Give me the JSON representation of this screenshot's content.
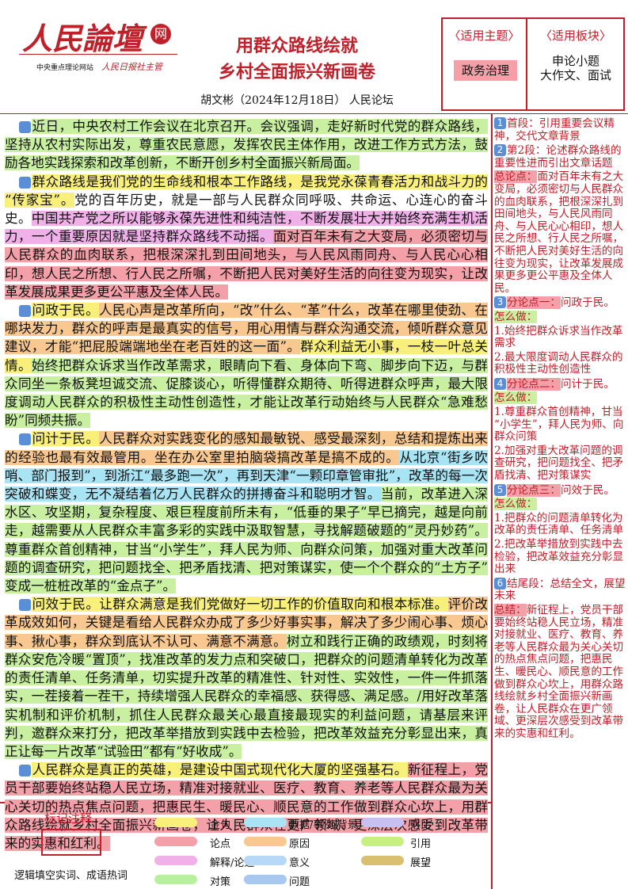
{
  "header": {
    "logo": "人民論壇",
    "logo_badge": "网",
    "logo_caption": "中央重点理论网站",
    "logo_org": "人民日报社主管",
    "title": [
      "用群众路线绘就",
      "乡村全面振兴新画卷"
    ],
    "byline": "胡文彬（2024年12月18日） 人民论坛"
  },
  "info_box": {
    "theme_label": "〈适用主题〉",
    "theme": "政务治理",
    "section_label": "〈适用板块〉",
    "section": [
      "申论小题",
      "大作文、面试"
    ]
  },
  "paragraphs": [
    {
      "number": "1",
      "segments": [
        {
          "text": "近日，中央农村工作会议在北京召开。会议强调，走好新时代党的群众路线，坚持从农村实际出发，尊重农民意愿，发挥农民主体作用，改进工作方式方法，鼓励各地实践探索和改革创新，不断开创乡村全面振兴新局面。",
          "color": "#c8f0a0"
        }
      ]
    },
    {
      "number": "2",
      "segments": [
        {
          "text": "群众路线是我们党的生命线和根本工作路线，是我党永葆青春活力和战斗力的“传家宝”。",
          "color": "#f8f07a"
        },
        {
          "text": "党的百年历史，就是一部与人民群众同呼吸、共命运、心连心的奋斗史。"
        },
        {
          "text": "中国共产党之所以能够永葆先进性和纯洁性，不断发展壮大并始终充满生机活力，一个重要原因就是坚持群众路线不动摇。",
          "color": "#f0b0e8"
        },
        {
          "text": "面对百年未有之大变局，必须密切与人民群众的血肉联系，把根深深扎到田间地头，与人民风雨同舟、与人民心心相印，想人民之所想、行人民之所嘱，不断把人民对美好生活的向往变为现实，让改革发展成果更多更公平惠及全体人民。",
          "color": "#f4a0a8"
        }
      ]
    },
    {
      "number": "3",
      "segments": [
        {
          "text": "问政于民。",
          "color": "#f8f07a"
        },
        {
          "text": "人民心声是改革所向，“改”什么、“革”什么，改革在哪里使劲、在哪块发力，群众的呼声是最真实的信号，用心用情与群众沟通交流，倾听群众意见建议，才能“把屁股端端地坐在老百姓的这一面”。",
          "color": "#f8c890"
        },
        {
          "text": "群众利益无小事，一枝一叶总关情。",
          "color": "#f8f07a"
        },
        {
          "text": "始终把群众诉求当作改革需求，眼睛向下看、身体向下弯、脚步向下迈，与群众同坐一条板凳坦诚交流、促膝谈心，听得懂群众期待、听得进群众呼声，最大限度调动人民群众的积极性主动性创造性，才能让改革行动始终与人民群众“急难愁盼”同频共振。",
          "color": "#c8f0a0"
        }
      ]
    },
    {
      "number": "4",
      "segments": [
        {
          "text": "问计于民。",
          "color": "#f8f07a"
        },
        {
          "text": "人民群众对实践变化的感知最敏锐、感受最深刻，总结和提炼出来的经验也最有效最管用。坐在办公室里拍脑袋搞改革是搞不成的。",
          "color": "#f8c890"
        },
        {
          "text": "从北京“街乡吹哨、部门报到”，到浙江“最多跑一次”，再到天津“一颗印章管审批”，改革的每一次突破和蝶变，无不凝结着亿万人民群众的拼搏奋斗和聪明才智。",
          "color": "#a8e4f4"
        },
        {
          "text": "当前，改革进入深水区、攻坚期，复杂程度、艰巨程度前所未有，“低垂的果子”早已摘完，越是向前走，越需要从人民群众丰富多彩的实践中汲取智慧，寻找解题破题的“灵丹妙药”。",
          "color": "#c8f0a0"
        },
        {
          "text": "尊重群众首创精神，甘当“小学生”，拜人民为师、向群众问策，加强对重大改革问题的调查研究，把问题找全、把矛盾找清、把对策谋实，使一个个群众的“土方子”变成一桩桩改革的“金点子”。",
          "color": "#c8f0a0"
        }
      ]
    },
    {
      "number": "5",
      "segments": [
        {
          "text": "问效于民。",
          "color": "#f8f07a"
        },
        {
          "text": "让群众满意是我们党做好一切工作的价值取向和根本标准。",
          "color": "#f8f07a"
        },
        {
          "text": "评价改革成效如何，关键是看给人民群众办成了多少好事实事，解决了多少闹心事、烦心事、揪心事，群众到底认不认可、满意不满意。",
          "color": "#f8c890"
        },
        {
          "text": "树立和践行正确的政绩观，时刻将群众安危冷暖“置顶”，找准改革的发力点和突破口，把群众的问题清单转化为改革的责任清单、任务清单，切实提升改革的精准性、针对性、实效性，一件一件抓落实，一茬接着一茬干，持续增强人民群众的幸福感、获得感、满足感。/",
          "color": "#c8f0a0"
        },
        {
          "text": "用好改革落实机制和评价机制，抓住人民群众最关心最直接最现实的利益问题，请基层来评判，邀群众来打分，把改革举措放到实践中去检验，把改革效益充分彰显出来，真正让每一片改革“试验田”都有“好收成”。",
          "color": "#c8f0a0"
        }
      ]
    },
    {
      "number": "6",
      "segments": [
        {
          "text": "人民群众是真正的英雄，是建设中国式现代化大厦的坚强基石。",
          "color": "#f8f07a"
        },
        {
          "text": "新征程上，党员干部要始终站稳人民立场，精准对接就业、医疗、教育、养老等人民群众最为关心关切的热点焦点问题，把惠民生、暖民心、顺民意的工作做到群众心坎上，用群众路线绘就乡村全面振兴新画卷，让人民群众在更广领域、更深层次感受到改革带来的实惠和红利。",
          "color": "#f4a0a8"
        }
      ]
    }
  ],
  "notes": [
    {
      "badge": "1",
      "text": "首段：引用重要会议精神，交代文章背景"
    },
    {
      "badge": "2",
      "text": "第2段：论述群众路线的重要性进而引出文章话题"
    },
    {
      "tag": "总论点：",
      "tag_color": "#f4a0a8",
      "text": "面对百年未有之大变局，必须密切与人民群众的血肉联系，把根深深扎到田间地头，与人民风雨同舟、与人民心心相印，想人民之所想、行人民之所嘱，不断把人民对美好生活的向往变为现实，让改革发展成果更多更公平惠及全体人民。"
    },
    {
      "badge": "3",
      "tag": "分论点一：",
      "tag_color": "#f4a0a8",
      "text": "问政于民。"
    },
    {
      "tag": "怎么做：",
      "tag_color": "#c8f0a0"
    },
    {
      "text": "1.始终把群众诉求当作改革需求"
    },
    {
      "text": "2.最大限度调动人民群众的积极性主动性创造性"
    },
    {
      "badge": "4",
      "tag": "分论点二：",
      "tag_color": "#f4a0a8",
      "text": "问计于民。"
    },
    {
      "tag": "怎么做：",
      "tag_color": "#c8f0a0"
    },
    {
      "text": "1.尊重群众首创精神，甘当“小学生”，拜人民为师、向群众问策"
    },
    {
      "text": "2.加强对重大改革问题的调查研究，把问题找全、把矛盾找清、把对策谋实"
    },
    {
      "badge": "5",
      "tag": "分论点三：",
      "tag_color": "#f4a0a8",
      "text": "问效于民。"
    },
    {
      "tag": "怎么做：",
      "tag_color": "#c8f0a0"
    },
    {
      "text": "1.把群众的问题清单转化为改革的责任清单、任务清单"
    },
    {
      "text": "2.把改革举措放到实践中去检验，把改革效益充分彰显出来"
    },
    {
      "badge": "6",
      "text": "结尾段：总结全文，展望未来"
    },
    {
      "tag": "总结：",
      "tag_color": "#f4a0a8",
      "text": "新征程上，党员干部要始终站稳人民立场，精准对接就业、医疗、教育、养老等人民群众最为关心关切的热点焦点问题，把惠民生、暖民心、顺民意的工作做到群众心坎上，用群众路线绘就乡村全面振兴新画卷，让人民群众在更广领域、更深层次感受到改革带来的实惠和红利。"
    }
  ],
  "legend": {
    "title": "标记注释",
    "caption": "逻辑填空实词、成语热词",
    "items": [
      {
        "label": "金句",
        "color": "#f8f07a"
      },
      {
        "label": "数据/事例/背景",
        "color": "#a8e4f4"
      },
      {
        "label": "对比",
        "color": "#c8c0f0"
      },
      {
        "label": "论点",
        "color": "#f4a0a8"
      },
      {
        "label": "原因",
        "color": "#f8c890"
      },
      {
        "label": "引用",
        "color": "#c8f080"
      },
      {
        "label": "解释/论述",
        "color": "#f0b0e8"
      },
      {
        "label": "意义",
        "color": "#b8d8f8"
      },
      {
        "label": "展望",
        "color": "#d8c070"
      },
      {
        "label": "对策",
        "color": "#b8f0a0"
      },
      {
        "label": "问题",
        "color": "#a8c8f0"
      }
    ]
  }
}
